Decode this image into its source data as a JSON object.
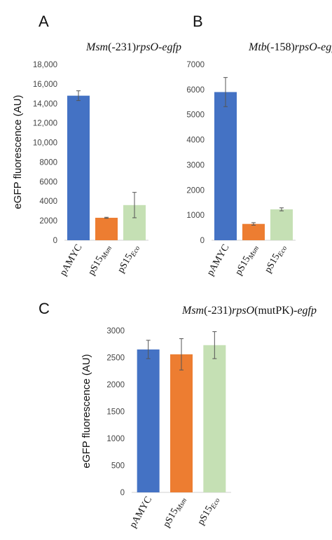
{
  "chart_data": [
    {
      "panel": "A",
      "type": "bar",
      "title_parts": [
        {
          "text": "Msm",
          "italic": true
        },
        {
          "text": "(-231)",
          "italic": false
        },
        {
          "text": "rpsO-egfp",
          "italic": true
        }
      ],
      "ylabel": "eGFP fluorescence (AU)",
      "ylim": [
        0,
        18000
      ],
      "yticks": [
        "0",
        "2000",
        "4000",
        "6000",
        "8000",
        "10,000",
        "12,000",
        "14,000",
        "16,000",
        "18,000"
      ],
      "categories": [
        {
          "main": "pAMYC",
          "sub": ""
        },
        {
          "main": "pS15",
          "sub": "Msm"
        },
        {
          "main": "pS15",
          "sub": "Eco"
        }
      ],
      "values": [
        14800,
        2300,
        3600
      ],
      "errors": [
        500,
        50,
        1300
      ],
      "colors": [
        "#4472c4",
        "#ed7d31",
        "#c5e0b4"
      ]
    },
    {
      "panel": "B",
      "type": "bar",
      "title_parts": [
        {
          "text": "Mtb",
          "italic": true
        },
        {
          "text": "(-158)",
          "italic": false
        },
        {
          "text": "rpsO-egfp",
          "italic": true
        }
      ],
      "ylabel": "",
      "ylim": [
        0,
        7000
      ],
      "yticks": [
        "0",
        "1000",
        "2000",
        "3000",
        "4000",
        "5000",
        "6000",
        "7000"
      ],
      "categories": [
        {
          "main": "pAMYC",
          "sub": ""
        },
        {
          "main": "pS15",
          "sub": "Msm"
        },
        {
          "main": "pS15",
          "sub": "Eco"
        }
      ],
      "values": [
        5900,
        650,
        1230
      ],
      "errors": [
        580,
        50,
        60
      ],
      "colors": [
        "#4472c4",
        "#ed7d31",
        "#c5e0b4"
      ]
    },
    {
      "panel": "C",
      "type": "bar",
      "title_parts": [
        {
          "text": "Msm",
          "italic": true
        },
        {
          "text": "(-231)",
          "italic": false
        },
        {
          "text": "rpsO",
          "italic": true
        },
        {
          "text": "(mutPK)-",
          "italic": false
        },
        {
          "text": "egfp",
          "italic": true
        }
      ],
      "ylabel": "eGFP fluorescence (AU)",
      "ylim": [
        0,
        3000
      ],
      "yticks": [
        "0",
        "500",
        "1000",
        "1500",
        "2000",
        "2500",
        "3000"
      ],
      "categories": [
        {
          "main": "pAMYC",
          "sub": ""
        },
        {
          "main": "pS15",
          "sub": "Msm"
        },
        {
          "main": "pS15",
          "sub": "Eco"
        }
      ],
      "values": [
        2650,
        2560,
        2730
      ],
      "errors": [
        170,
        290,
        250
      ],
      "colors": [
        "#4472c4",
        "#ed7d31",
        "#c5e0b4"
      ]
    }
  ]
}
